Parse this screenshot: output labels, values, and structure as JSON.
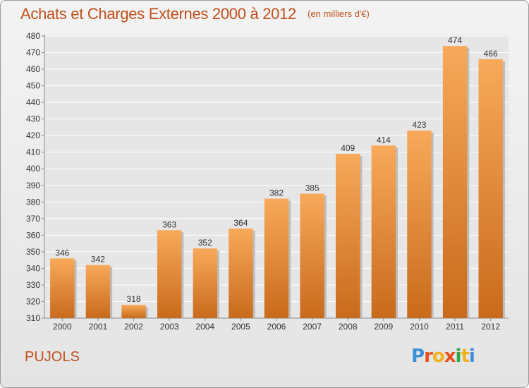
{
  "chart_data": {
    "type": "bar",
    "title": "Achats et Charges Externes 2000 à 2012",
    "subtitle": "(en milliers d'€)",
    "categories": [
      "2000",
      "2001",
      "2002",
      "2003",
      "2004",
      "2005",
      "2006",
      "2007",
      "2008",
      "2009",
      "2010",
      "2011",
      "2012"
    ],
    "values": [
      346,
      342,
      318,
      363,
      352,
      364,
      382,
      385,
      409,
      414,
      423,
      474,
      466
    ],
    "ylim": [
      310,
      480
    ],
    "yticks": [
      310,
      320,
      330,
      340,
      350,
      360,
      370,
      380,
      390,
      400,
      410,
      420,
      430,
      440,
      450,
      460,
      470,
      480
    ],
    "grid": true,
    "legend": "none",
    "colors": {
      "bar_light": "#f8a95a",
      "bar_dark": "#c96a1c",
      "grid": "#ffffff",
      "title": "#c0501d"
    }
  },
  "footer": {
    "commune": "PUJOLS",
    "logo_text": "Proxiti",
    "logo_colors": [
      "#3a8fd9",
      "#e8501e",
      "#f2b21c",
      "#e8501e",
      "#2aa84a",
      "#f2b21c",
      "#3a8fd9"
    ]
  }
}
